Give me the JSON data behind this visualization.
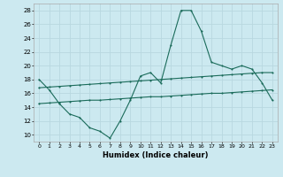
{
  "xlabel": "Humidex (Indice chaleur)",
  "ylabel": "",
  "background_color": "#cce9f0",
  "grid_color": "#b8d8e0",
  "line_color": "#1a6b5a",
  "xlim": [
    -0.5,
    23.5
  ],
  "ylim": [
    9,
    29
  ],
  "xticks": [
    0,
    1,
    2,
    3,
    4,
    5,
    6,
    7,
    8,
    9,
    10,
    11,
    12,
    13,
    14,
    15,
    16,
    17,
    18,
    19,
    20,
    21,
    22,
    23
  ],
  "yticks": [
    10,
    12,
    14,
    16,
    18,
    20,
    22,
    24,
    26,
    28
  ],
  "curve1_x": [
    0,
    1,
    2,
    3,
    4,
    5,
    6,
    7,
    8,
    9,
    10,
    11,
    12,
    13,
    14,
    15,
    16,
    17,
    18,
    19,
    20,
    21,
    22,
    23
  ],
  "curve1_y": [
    18,
    16.5,
    14.5,
    13,
    12.5,
    11,
    10.5,
    9.5,
    12,
    15,
    18.5,
    19,
    17.5,
    23,
    28,
    28,
    25,
    20.5,
    20,
    19.5,
    20,
    19.5,
    17.5,
    15
  ],
  "curve2_x": [
    0,
    1,
    2,
    3,
    4,
    5,
    6,
    7,
    8,
    9,
    10,
    11,
    12,
    13,
    14,
    15,
    16,
    17,
    18,
    19,
    20,
    21,
    22,
    23
  ],
  "curve2_y": [
    16.8,
    16.9,
    17.0,
    17.1,
    17.2,
    17.3,
    17.4,
    17.5,
    17.6,
    17.7,
    17.8,
    17.9,
    18.0,
    18.1,
    18.2,
    18.3,
    18.4,
    18.5,
    18.6,
    18.7,
    18.8,
    18.9,
    19.0,
    19.0
  ],
  "curve3_x": [
    0,
    1,
    2,
    3,
    4,
    5,
    6,
    7,
    8,
    9,
    10,
    11,
    12,
    13,
    14,
    15,
    16,
    17,
    18,
    19,
    20,
    21,
    22,
    23
  ],
  "curve3_y": [
    14.5,
    14.6,
    14.7,
    14.8,
    14.9,
    15.0,
    15.0,
    15.1,
    15.2,
    15.3,
    15.4,
    15.5,
    15.5,
    15.6,
    15.7,
    15.8,
    15.9,
    16.0,
    16.0,
    16.1,
    16.2,
    16.3,
    16.4,
    16.5
  ]
}
